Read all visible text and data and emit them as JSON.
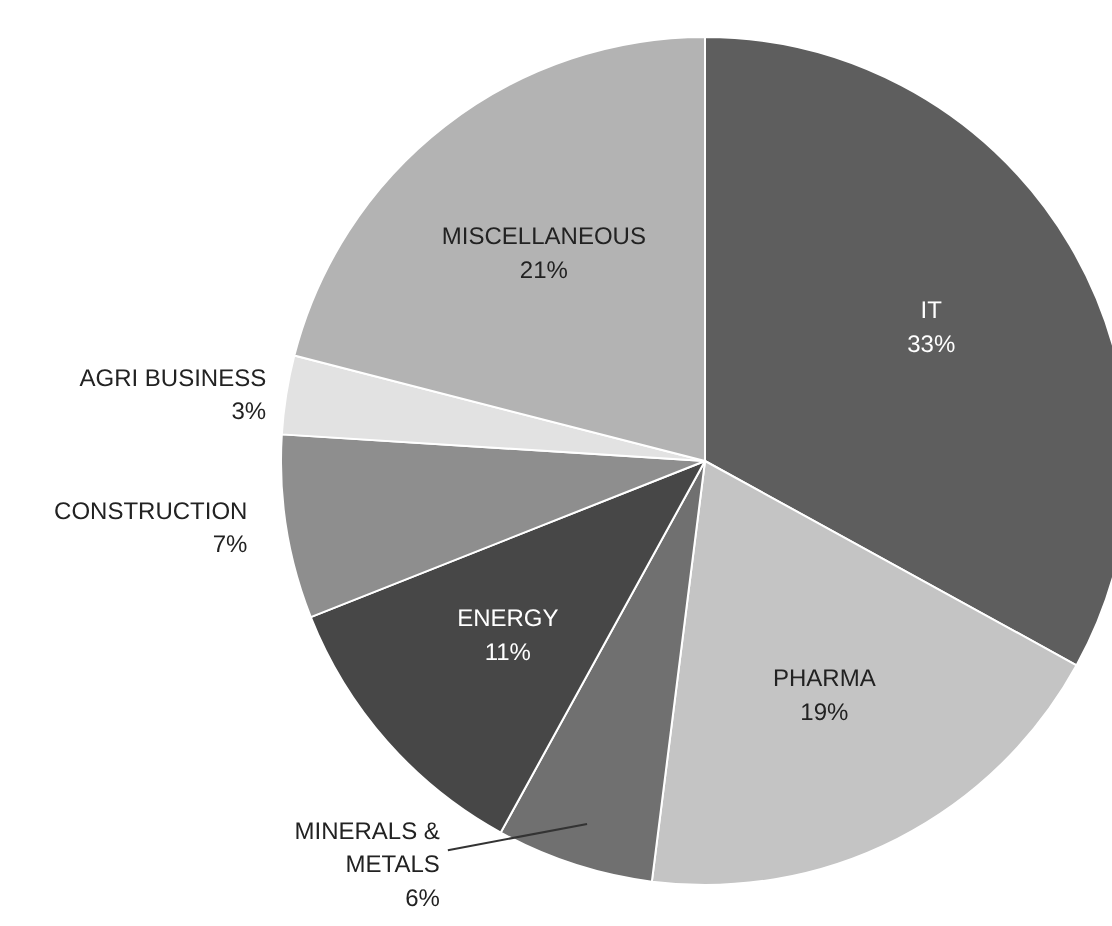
{
  "chart_data": {
    "type": "pie",
    "categories": [
      "IT",
      "PHARMA",
      "MINERALS &\nMETALS",
      "ENERGY",
      "CONSTRUCTION",
      "AGRI BUSINESS",
      "MISCELLANEOUS"
    ],
    "values": [
      33,
      19,
      6,
      11,
      7,
      3,
      21
    ],
    "value_labels": [
      "33%",
      "19%",
      "6%",
      "11%",
      "7%",
      "3%",
      "21%"
    ],
    "colors": [
      "#5e5e5e",
      "#c4c4c4",
      "#707070",
      "#474747",
      "#8e8e8e",
      "#e2e2e2",
      "#b3b3b3"
    ]
  }
}
